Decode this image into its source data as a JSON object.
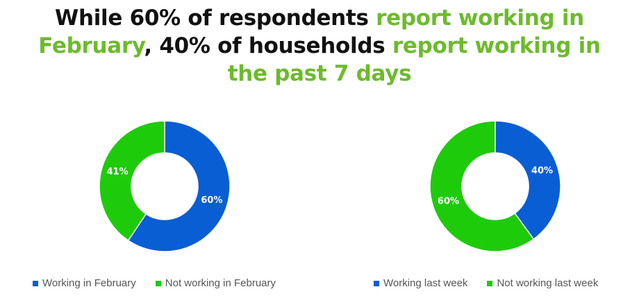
{
  "title": {
    "part1": "While 60% of respondents ",
    "part2": "report working in February",
    "part3": ", 40% of households ",
    "part4": "report working in the past 7 days"
  },
  "colors": {
    "title_text": "#111111",
    "title_highlight": "#6cbb2c",
    "blue": "#0a5ed3",
    "green": "#1ecb0a",
    "legend_text": "#555555"
  },
  "chart_data": [
    {
      "type": "pie",
      "donut": true,
      "categories": [
        "Working in February",
        "Not working in February"
      ],
      "values": [
        60,
        41
      ],
      "labels": [
        "60%",
        "41%"
      ],
      "colors": [
        "#0a5ed3",
        "#1ecb0a"
      ],
      "legend_position": "bottom"
    },
    {
      "type": "pie",
      "donut": true,
      "categories": [
        "Working last week",
        "Not working last week"
      ],
      "values": [
        40,
        60
      ],
      "labels": [
        "40%",
        "60%"
      ],
      "colors": [
        "#0a5ed3",
        "#1ecb0a"
      ],
      "legend_position": "bottom"
    }
  ]
}
